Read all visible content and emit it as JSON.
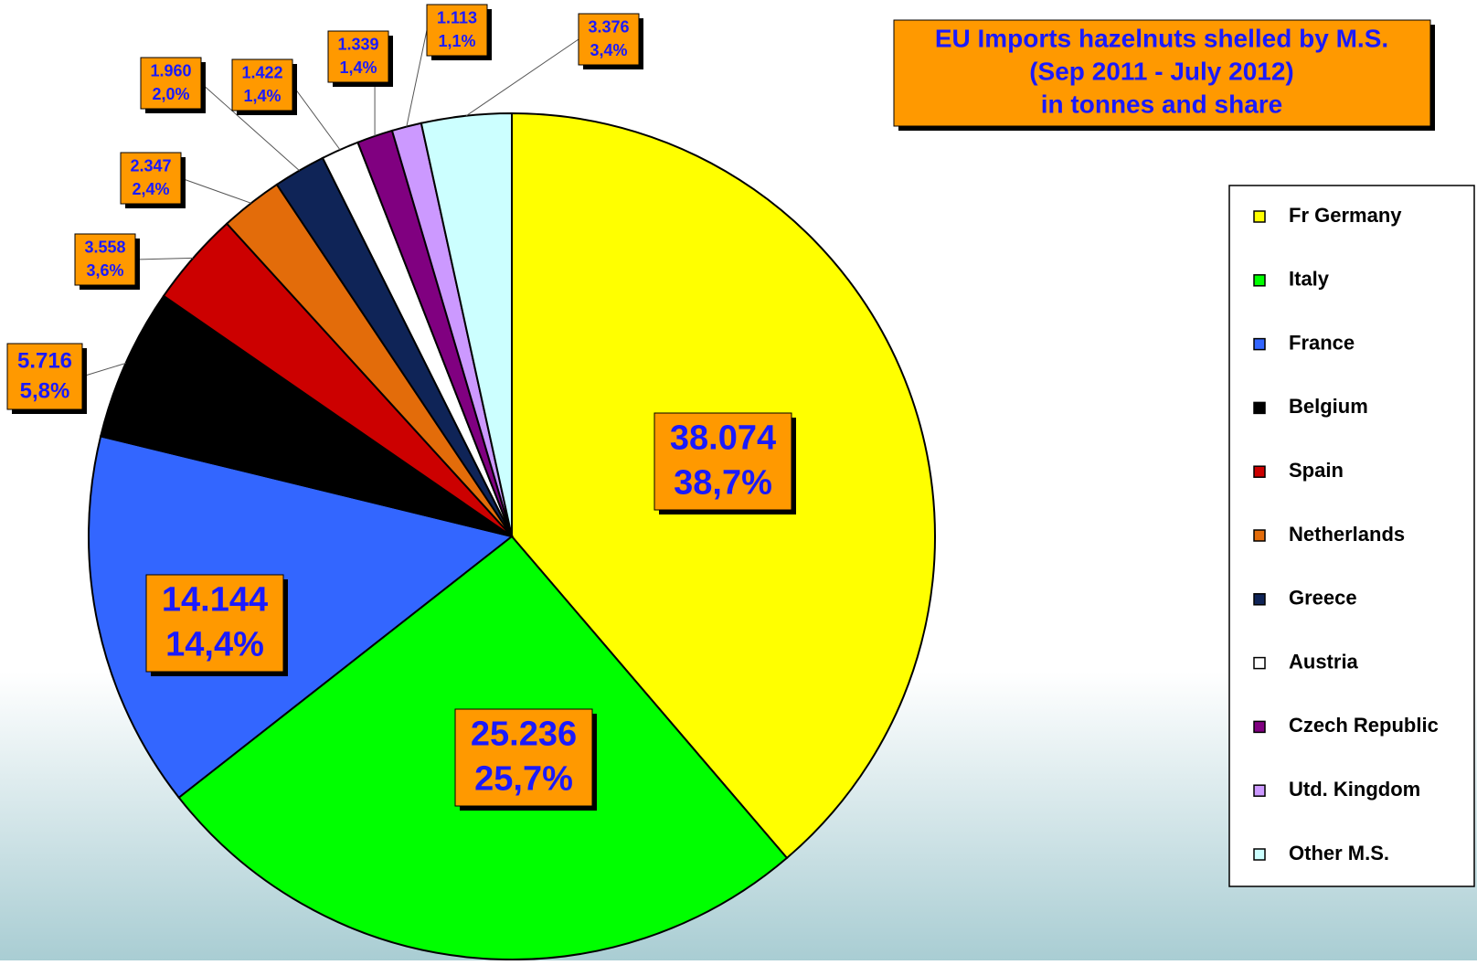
{
  "chart_data": {
    "type": "pie",
    "title": "EU Imports hazelnuts shelled by M.S.",
    "subtitle": "(Sep 2011 - July 2012)",
    "note": "in tonnes and share",
    "categories": [
      "Fr Germany",
      "Italy",
      "France",
      "Belgium",
      "Spain",
      "Netherlands",
      "Greece",
      "Austria",
      "Czech Republic",
      "Utd. Kingdom",
      "Other M.S."
    ],
    "values": [
      38074,
      25236,
      14144,
      5716,
      3558,
      2347,
      1960,
      1422,
      1339,
      1113,
      3376
    ],
    "value_labels": [
      "38.074",
      "25.236",
      "14.144",
      "5.716",
      "3.558",
      "2.347",
      "1.960",
      "1.422",
      "1.339",
      "1.113",
      "3.376"
    ],
    "shares": [
      {
        "value": 38.7,
        "label": "38,7%"
      },
      {
        "value": 25.7,
        "label": "25,7%"
      },
      {
        "value": 14.4,
        "label": "14,4%"
      },
      {
        "value": 5.8,
        "label": "5,8%"
      },
      {
        "value": 3.6,
        "label": "3,6%"
      },
      {
        "value": 2.4,
        "label": "2,4%"
      },
      {
        "value": 2.0,
        "label": "2,0%"
      },
      {
        "value": 1.4,
        "label": "1,4%"
      },
      {
        "value": 1.4,
        "label": "1,4%"
      },
      {
        "value": 1.1,
        "label": "1,1%"
      },
      {
        "value": 3.4,
        "label": "3,4%"
      }
    ],
    "colors": [
      "#ffff00",
      "#00ff00",
      "#3366ff",
      "#000000",
      "#cc0000",
      "#e36c0a",
      "#0f2457",
      "#ffffff",
      "#800080",
      "#cc99ff",
      "#ccffff"
    ],
    "legend": "right"
  }
}
